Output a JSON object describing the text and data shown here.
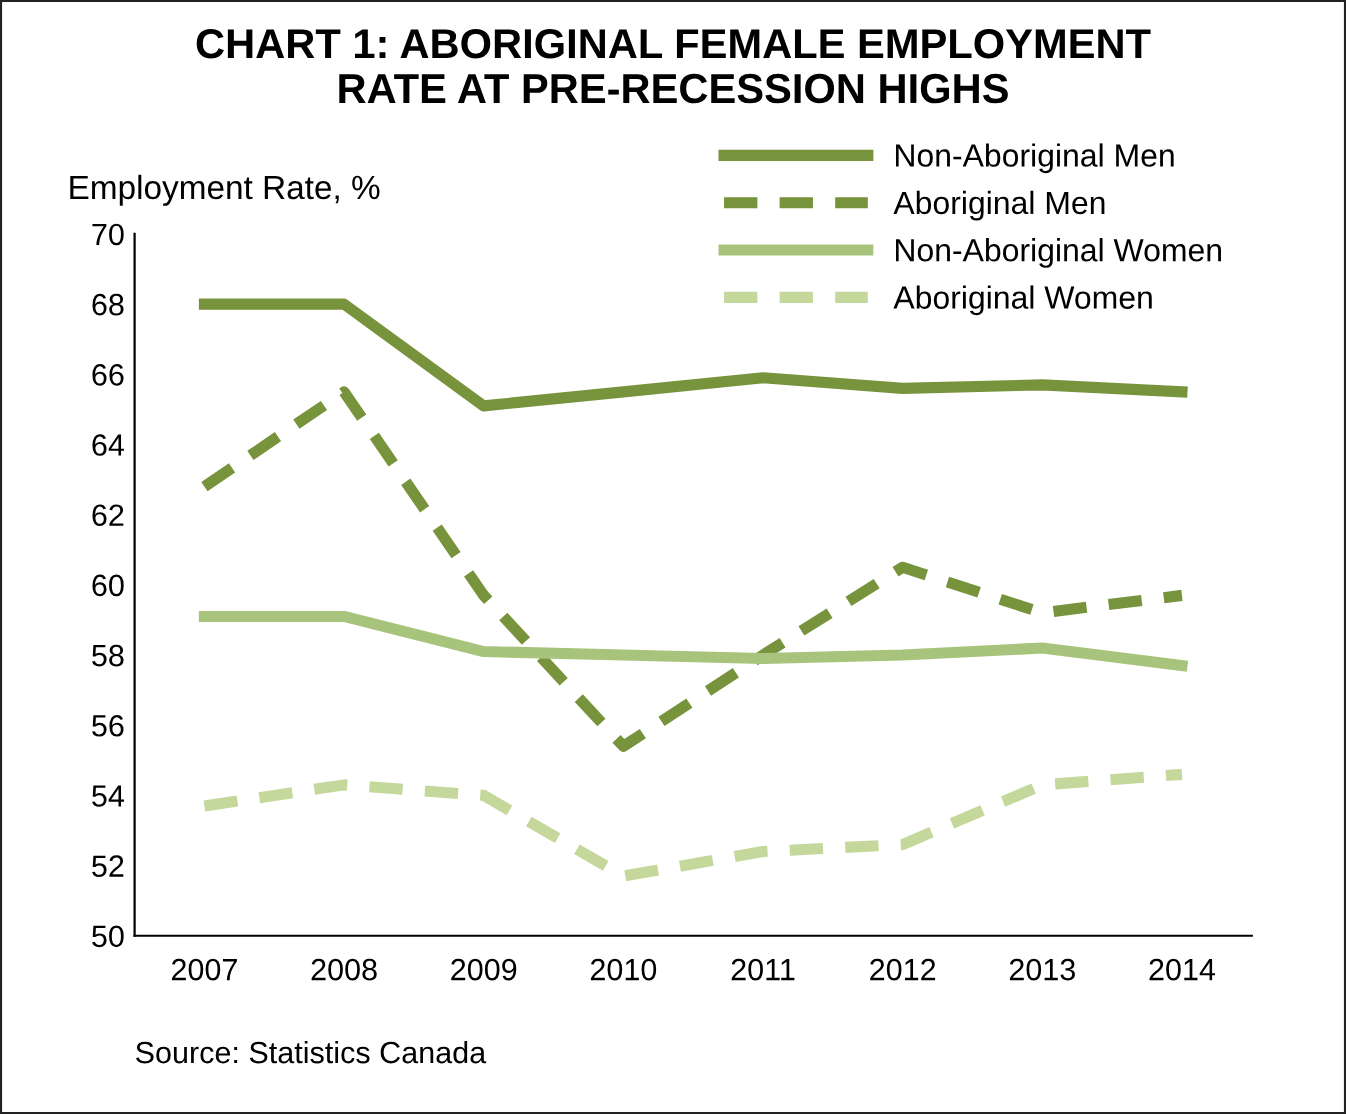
{
  "chart_data": {
    "type": "line",
    "title": "CHART 1: ABORIGINAL FEMALE EMPLOYMENT\nRATE AT PRE-RECESSION HIGHS",
    "ylabel": "Employment Rate, %",
    "categories": [
      "2007",
      "2008",
      "2009",
      "2010",
      "2011",
      "2012",
      "2013",
      "2014"
    ],
    "series": [
      {
        "name": "Non-Aboriginal Men",
        "color": "#77933c",
        "line_style": "solid",
        "values": [
          68.0,
          68.0,
          65.1,
          65.5,
          65.9,
          65.6,
          65.7,
          65.5
        ]
      },
      {
        "name": "Aboriginal Men",
        "color": "#77933c",
        "line_style": "dashed",
        "values": [
          62.8,
          65.5,
          59.7,
          55.4,
          58.0,
          60.5,
          59.2,
          59.7
        ]
      },
      {
        "name": "Non-Aboriginal Women",
        "color": "#a8c47c",
        "line_style": "solid",
        "values": [
          59.1,
          59.1,
          58.1,
          58.0,
          57.9,
          58.0,
          58.2,
          57.7
        ]
      },
      {
        "name": "Aboriginal Women",
        "color": "#c4d89c",
        "line_style": "dashed",
        "values": [
          53.7,
          54.3,
          54.0,
          51.7,
          52.4,
          52.6,
          54.3,
          54.6
        ]
      }
    ],
    "ylim": [
      50,
      70
    ],
    "yticks": [
      50,
      52,
      54,
      56,
      58,
      60,
      62,
      64,
      66,
      68,
      70
    ],
    "grid": false,
    "legend": "top right",
    "marker": "none",
    "annotations": [
      "Source: Statistics Canada"
    ]
  }
}
